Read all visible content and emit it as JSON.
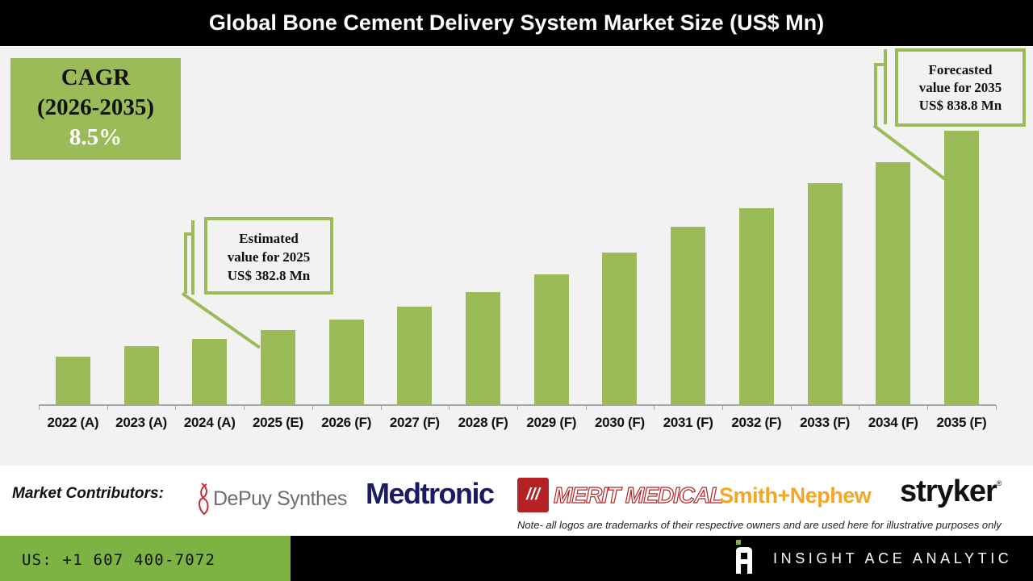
{
  "header": {
    "title": "Global Bone Cement Delivery System Market Size (US$ Mn)"
  },
  "cagr": {
    "label": "CAGR",
    "period": "(2026-2035)",
    "value": "8.5%"
  },
  "callouts": {
    "estimated": {
      "line1": "Estimated",
      "line2": "value for 2025",
      "line3": "US$ 382.8 Mn"
    },
    "forecasted": {
      "line1": "Forecasted",
      "line2": "value for 2035",
      "line3": "US$ 838.8 Mn"
    }
  },
  "colors": {
    "bar": "#9bbb59",
    "header_bg": "#000000",
    "plot_bg": "#f2f2f2",
    "footer_green": "#7cb342"
  },
  "chart_data": {
    "type": "bar",
    "title": "Global Bone Cement Delivery System Market Size (US$ Mn)",
    "xlabel": "",
    "ylabel": "US$ Mn",
    "categories": [
      "2022 (A)",
      "2023 (A)",
      "2024 (A)",
      "2025 (E)",
      "2026 (F)",
      "2027 (F)",
      "2028 (F)",
      "2029 (F)",
      "2030 (F)",
      "2031 (F)",
      "2032 (F)",
      "2033 (F)",
      "2034 (F)",
      "2035 (F)"
    ],
    "values": [
      322.0,
      346.0,
      362.0,
      382.8,
      406.0,
      436.0,
      469.0,
      510.0,
      560.0,
      619.0,
      661.0,
      719.0,
      767.0,
      838.8
    ],
    "labeled_points": {
      "2025 (E)": 382.8,
      "2035 (F)": 838.8
    },
    "annotations": [
      "CAGR (2026-2035) 8.5%",
      "Estimated value for 2025 US$ 382.8 Mn",
      "Forecasted value for 2035 US$ 838.8 Mn"
    ],
    "grid": false,
    "legend": null,
    "yaxis_visible": false
  },
  "contributors": {
    "label": "Market Contributors:",
    "logos": [
      "DePuy Synthes",
      "Medtronic",
      "MERIT MEDICAL",
      "Smith+Nephew",
      "stryker"
    ],
    "note": "Note- all logos are trademarks of their respective owners and are used here for illustrative purposes only"
  },
  "footer": {
    "phone": "US: +1 607 400-7072",
    "brand": "INSIGHT ACE ANALYTIC"
  }
}
